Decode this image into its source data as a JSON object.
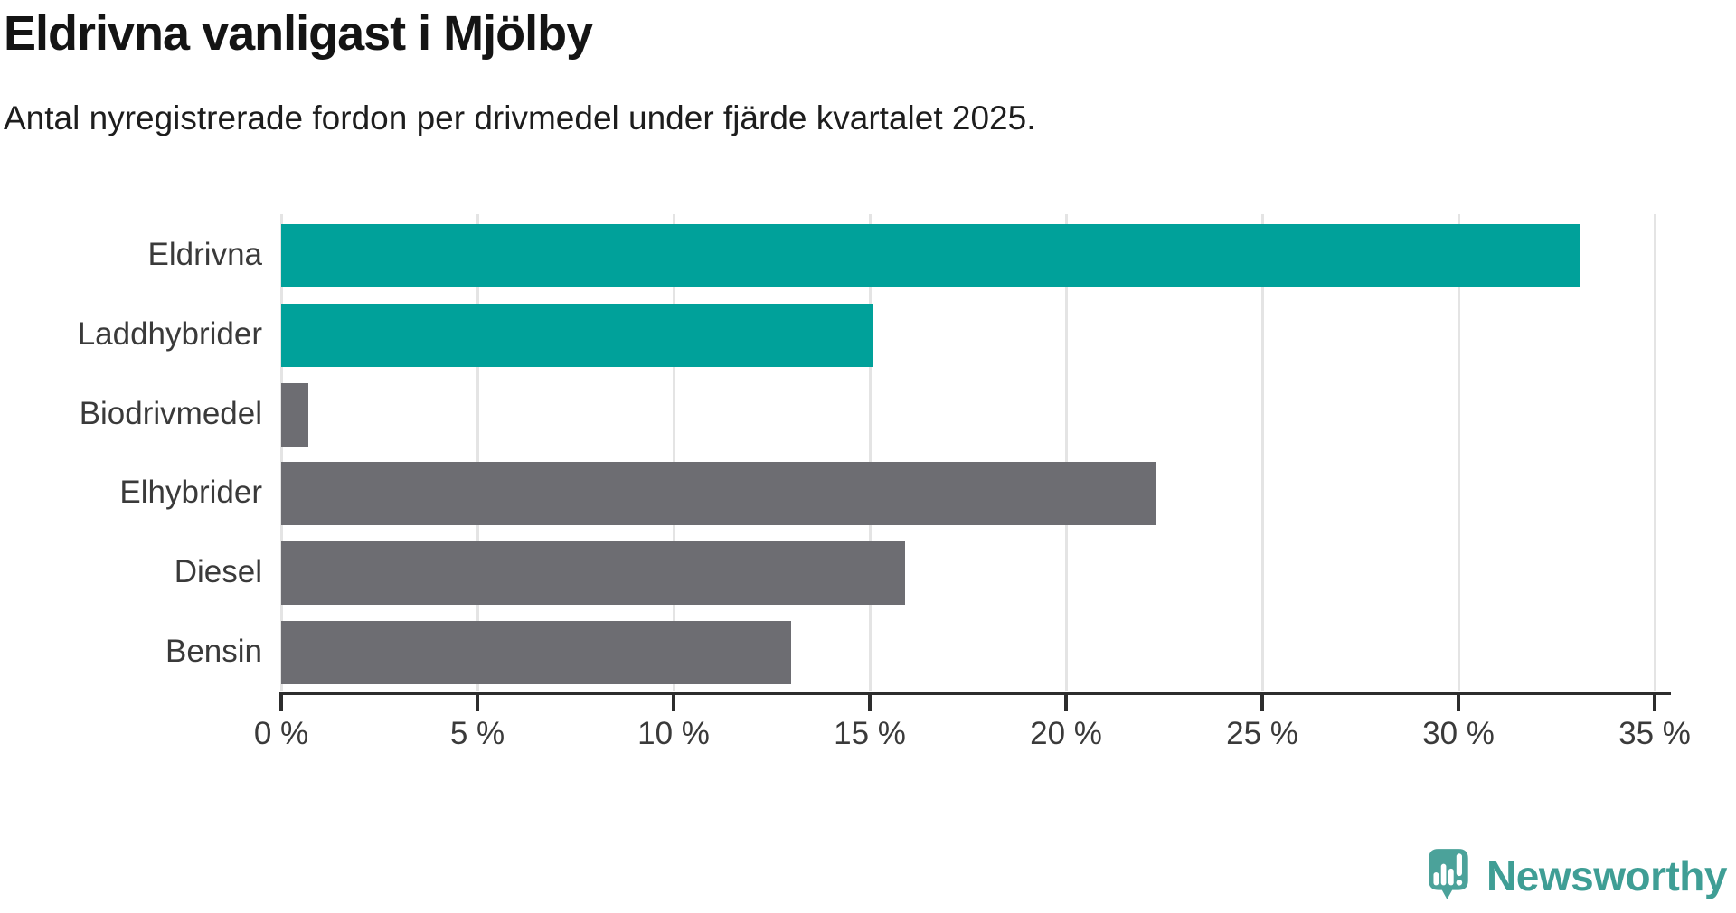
{
  "header": {
    "title": "Eldrivna vanligast i Mjölby",
    "subtitle": "Antal nyregistrerade fordon per drivmedel under fjärde kvartalet 2025."
  },
  "chart_data": {
    "type": "bar",
    "orientation": "horizontal",
    "title": "Eldrivna vanligast i Mjölby",
    "subtitle": "Antal nyregistrerade fordon per drivmedel under fjärde kvartalet 2025.",
    "categories": [
      "Eldrivna",
      "Laddhybrider",
      "Biodrivmedel",
      "Elhybrider",
      "Diesel",
      "Bensin"
    ],
    "values": [
      33.1,
      15.1,
      0.7,
      22.3,
      15.9,
      13.0
    ],
    "unit": "%",
    "bar_colors": [
      "#00a19a",
      "#00a19a",
      "#6d6d72",
      "#6d6d72",
      "#6d6d72",
      "#6d6d72"
    ],
    "x_ticks": [
      {
        "value": 0,
        "label": "0 %"
      },
      {
        "value": 5,
        "label": "5 %"
      },
      {
        "value": 10,
        "label": "10 %"
      },
      {
        "value": 15,
        "label": "15 %"
      },
      {
        "value": 20,
        "label": "20 %"
      },
      {
        "value": 25,
        "label": "25 %"
      },
      {
        "value": 30,
        "label": "30 %"
      },
      {
        "value": 35,
        "label": "35 %"
      }
    ],
    "xlim": [
      0,
      35.4
    ],
    "grid": true,
    "legend": "none",
    "ylabel": "",
    "xlabel": ""
  },
  "colors": {
    "highlight": "#00a19a",
    "neutral": "#6d6d72",
    "gridline": "#e4e4e4",
    "axis": "#2d2d2d",
    "label_text": "#3a3a3a",
    "title_text": "#141414",
    "logo_bubble": "#4ba29a",
    "logo_text": "#3f9e95"
  },
  "footer": {
    "brand": "Newsworthy"
  }
}
